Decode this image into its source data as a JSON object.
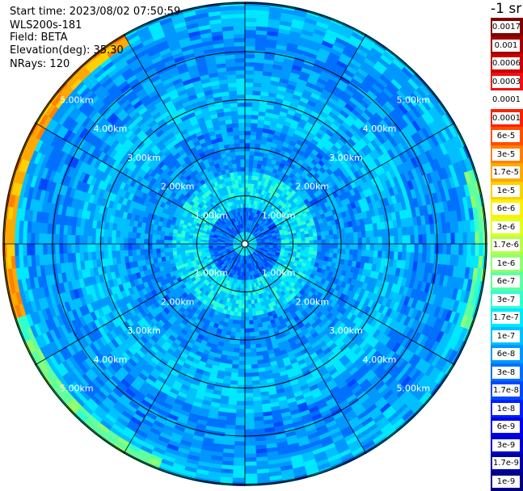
{
  "header": {
    "start_time": "Start time: 2023/08/02 07:50:59",
    "device": "WLS200s-181",
    "field": "Field: BETA",
    "elevation": "Elevation(deg): 35.30",
    "nrays": "NRays: 120"
  },
  "colorbar": {
    "unit_label": "-1 sr",
    "ticks": [
      "0.0017",
      "0.001",
      "0.0006",
      "0.0003",
      "0.00017",
      "0.0001",
      "6e-5",
      "3e-5",
      "1.7e-5",
      "1e-5",
      "6e-6",
      "3e-6",
      "1.7e-6",
      "1e-6",
      "6e-7",
      "3e-7",
      "1.7e-7",
      "1e-7",
      "6e-8",
      "3e-8",
      "1.7e-8",
      "1e-8",
      "6e-9",
      "3e-9",
      "1.7e-9",
      "1e-9"
    ],
    "colors": [
      "#800000",
      "#a00000",
      "#c80000",
      "#f01010",
      "#ffffff",
      "#ff2000",
      "#ff5000",
      "#ff8000",
      "#ffa800",
      "#ffd000",
      "#fff000",
      "#e0ff20",
      "#b8ff48",
      "#90ff70",
      "#60ffa0",
      "#30ffd0",
      "#00e8ff",
      "#00c0ff",
      "#0098ff",
      "#0070ff",
      "#0048ff",
      "#0020ff",
      "#0000f0",
      "#0000c8",
      "#0000a0",
      "#000080"
    ]
  },
  "chart_data": {
    "type": "heatmap",
    "projection": "polar",
    "rings_km": [
      1,
      2,
      3,
      4,
      5
    ],
    "ring_labels": [
      "1.00km",
      "2.00km",
      "3.00km",
      "4.00km",
      "5.00km"
    ],
    "spoke_count": 12,
    "nrays": 120,
    "max_range_km": 5.0,
    "value_profile_by_range": [
      {
        "range_km": 0.0,
        "value": "1.7e-7"
      },
      {
        "range_km": 0.5,
        "value": "3e-8"
      },
      {
        "range_km": 1.0,
        "value": "1.7e-7"
      },
      {
        "range_km": 2.0,
        "value": "6e-8"
      },
      {
        "range_km": 3.0,
        "value": "1e-7"
      },
      {
        "range_km": 4.0,
        "value": "6e-8"
      },
      {
        "range_km": 5.0,
        "value": "1e-7"
      }
    ],
    "edge_highlights": [
      {
        "sector": "top-left",
        "value": "3e-5"
      },
      {
        "sector": "bottom-left",
        "value": "1e-6"
      },
      {
        "sector": "right",
        "value": "1e-6"
      }
    ]
  }
}
